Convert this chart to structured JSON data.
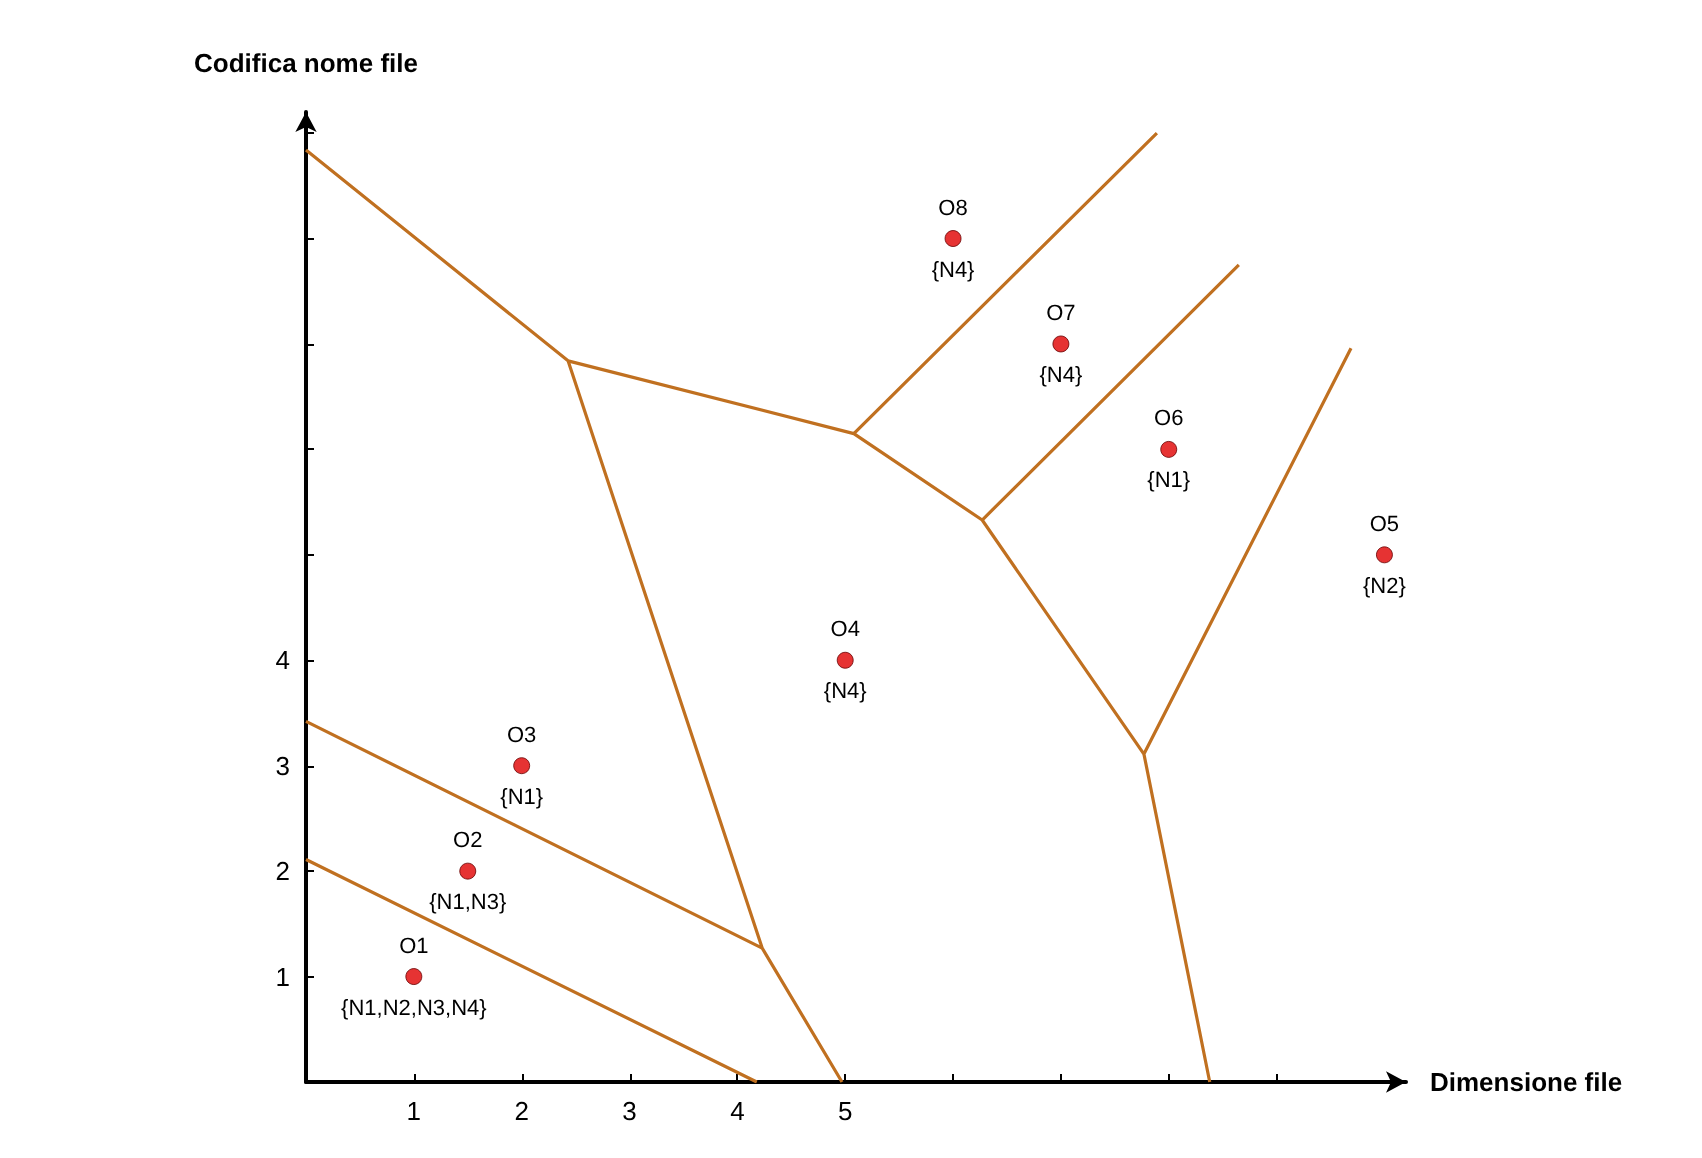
{
  "chart_data": {
    "type": "scatter",
    "xlabel": "Dimensione file",
    "ylabel": "Codifica nome file",
    "xlim": [
      0,
      10.2
    ],
    "ylim": [
      0,
      9.2
    ],
    "xticks": [
      1,
      2,
      3,
      4,
      5,
      {
        "value": 6,
        "label": null
      },
      {
        "value": 7,
        "label": null
      },
      {
        "value": 8,
        "label": null
      },
      {
        "value": 9,
        "label": null
      }
    ],
    "yticks": [
      1,
      2,
      3,
      4,
      {
        "value": 5,
        "label": null
      },
      {
        "value": 6,
        "label": null
      },
      {
        "value": 7,
        "label": null
      },
      {
        "value": 8,
        "label": null
      },
      {
        "value": 9,
        "label": null
      }
    ],
    "grid": false,
    "marker": "circle",
    "series": [
      {
        "color": "#e00000",
        "x": [
          1,
          1.5,
          2,
          5,
          10,
          8,
          7,
          6
        ],
        "values": [
          1,
          2,
          3,
          4,
          5,
          6,
          7,
          8
        ]
      },
      {
        "type": "line",
        "color": "#c07020",
        "marker": "none",
        "x": [
          0,
          2.43,
          4.23,
          4.97,
          null,
          2.43,
          5.08,
          7.89,
          null,
          5.08,
          6.27,
          8.65,
          null,
          6.27,
          7.77,
          9.69,
          null,
          7.77,
          8.38,
          null,
          0,
          4.23,
          null,
          0,
          4.18
        ],
        "values": [
          8.84,
          6.84,
          1.27,
          0,
          null,
          6.84,
          6.15,
          9.0,
          null,
          6.15,
          5.33,
          7.75,
          null,
          5.33,
          3.11,
          6.96,
          null,
          3.11,
          0,
          null,
          3.42,
          1.27,
          null,
          2.11,
          0
        ]
      }
    ],
    "annotations": [
      {
        "text": "O1",
        "x": 1,
        "y": 1
      },
      {
        "text": "{N1,N2,N3,N4}",
        "x": 1,
        "y": 1
      },
      {
        "text": "O2",
        "x": 1.5,
        "y": 2
      },
      {
        "text": "{N1,N3}",
        "x": 1.5,
        "y": 2
      },
      {
        "text": "O3",
        "x": 2,
        "y": 3
      },
      {
        "text": "{N1}",
        "x": 2,
        "y": 3
      },
      {
        "text": "O4",
        "x": 5,
        "y": 4
      },
      {
        "text": "{N4}",
        "x": 5,
        "y": 4
      },
      {
        "text": "O5",
        "x": 10,
        "y": 5
      },
      {
        "text": "{N2}",
        "x": 10,
        "y": 5
      },
      {
        "text": "O6",
        "x": 8,
        "y": 6
      },
      {
        "text": "{N1}",
        "x": 8,
        "y": 6
      },
      {
        "text": "O7",
        "x": 7,
        "y": 7
      },
      {
        "text": "{N4}",
        "x": 7,
        "y": 7
      },
      {
        "text": "O8",
        "x": 6,
        "y": 8
      },
      {
        "text": "{N4}",
        "x": 6,
        "y": 8
      }
    ]
  }
}
